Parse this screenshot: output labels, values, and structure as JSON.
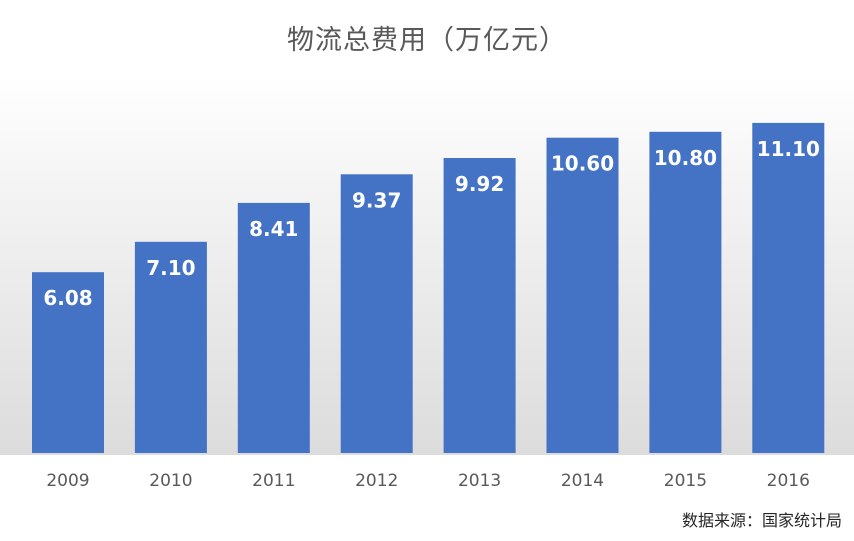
{
  "chart_data": {
    "type": "bar",
    "title": "物流总费用（万亿元）",
    "categories": [
      "2009",
      "2010",
      "2011",
      "2012",
      "2013",
      "2014",
      "2015",
      "2016"
    ],
    "values": [
      6.08,
      7.1,
      8.41,
      9.37,
      9.92,
      10.6,
      10.8,
      11.1
    ],
    "value_labels": [
      "6.08",
      "7.10",
      "8.41",
      "9.37",
      "9.92",
      "10.60",
      "10.80",
      "11.10"
    ],
    "xlabel": "",
    "ylabel": "",
    "ylim": [
      0,
      11.6
    ],
    "grid": false,
    "bar_color": "#4472C4"
  },
  "source_note": "数据来源：国家统计局"
}
